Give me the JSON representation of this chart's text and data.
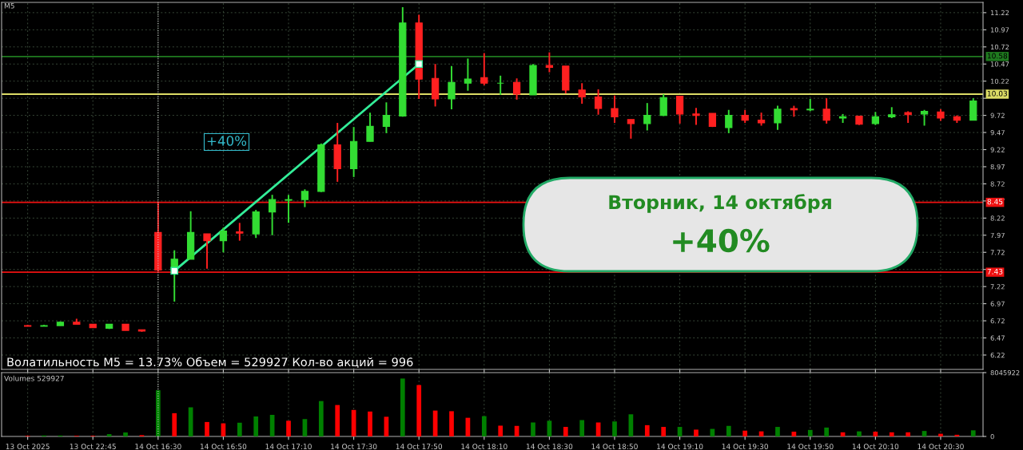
{
  "chart_data": [
    {
      "type": "candlestick",
      "title": "M5",
      "categories": [
        "13 Oct 2025",
        null,
        null,
        null,
        "13 Oct 22:45",
        null,
        null,
        null,
        "14 Oct 16:30",
        null,
        null,
        null,
        "14 Oct 16:50",
        null,
        null,
        null,
        "14 Oct 17:10",
        null,
        null,
        null,
        "14 Oct 17:30",
        null,
        null,
        null,
        "14 Oct 17:50",
        null,
        null,
        null,
        "14 Oct 18:10",
        null,
        null,
        null,
        "14 Oct 18:30",
        null,
        null,
        null,
        "14 Oct 18:50",
        null,
        null,
        null,
        "14 Oct 19:10",
        null,
        null,
        null,
        "14 Oct 19:30",
        null,
        null,
        null,
        "14 Oct 19:50",
        null,
        null,
        null,
        "14 Oct 20:10",
        null,
        null,
        null,
        "14 Oct 20:30",
        null,
        null
      ],
      "ohlc": [
        [
          6.65,
          6.66,
          6.64,
          6.64
        ],
        [
          6.64,
          6.66,
          6.64,
          6.65
        ],
        [
          6.65,
          6.71,
          6.65,
          6.7
        ],
        [
          6.7,
          6.75,
          6.67,
          6.67
        ],
        [
          6.67,
          6.67,
          6.62,
          6.62
        ],
        [
          6.61,
          6.67,
          6.6,
          6.67
        ],
        [
          6.67,
          6.67,
          6.58,
          6.58
        ],
        [
          6.59,
          6.59,
          6.56,
          6.57
        ],
        [
          8.01,
          8.45,
          7.44,
          7.46
        ],
        [
          7.46,
          7.75,
          7.0,
          7.62
        ],
        [
          7.62,
          8.32,
          7.62,
          8.01
        ],
        [
          7.99,
          7.99,
          7.48,
          7.89
        ],
        [
          7.89,
          8.08,
          7.72,
          8.03
        ],
        [
          8.02,
          8.15,
          7.89,
          8.0
        ],
        [
          7.99,
          8.34,
          7.93,
          8.31
        ],
        [
          8.31,
          8.56,
          7.97,
          8.49
        ],
        [
          8.48,
          8.56,
          8.15,
          8.49
        ],
        [
          8.49,
          8.64,
          8.38,
          8.61
        ],
        [
          8.61,
          9.31,
          8.6,
          9.29
        ],
        [
          9.29,
          9.61,
          8.75,
          8.94
        ],
        [
          8.94,
          9.55,
          8.82,
          9.34
        ],
        [
          9.34,
          9.76,
          9.34,
          9.56
        ],
        [
          9.56,
          9.91,
          9.46,
          9.72
        ],
        [
          9.71,
          11.3,
          9.7,
          11.07
        ],
        [
          11.07,
          11.19,
          9.96,
          10.25
        ],
        [
          10.26,
          10.47,
          9.85,
          9.96
        ],
        [
          9.96,
          10.44,
          9.81,
          10.2
        ],
        [
          10.19,
          10.55,
          10.08,
          10.25
        ],
        [
          10.27,
          10.63,
          10.16,
          10.19
        ],
        [
          10.19,
          10.3,
          10.02,
          10.19
        ],
        [
          10.2,
          10.26,
          9.95,
          10.03
        ],
        [
          10.02,
          10.47,
          10.02,
          10.45
        ],
        [
          10.45,
          10.64,
          10.35,
          10.42
        ],
        [
          10.44,
          10.44,
          10.04,
          10.09
        ],
        [
          10.09,
          10.19,
          9.89,
          9.99
        ],
        [
          9.99,
          10.1,
          9.73,
          9.82
        ],
        [
          9.82,
          10.01,
          9.61,
          9.7
        ],
        [
          9.66,
          9.66,
          9.38,
          9.6
        ],
        [
          9.6,
          9.9,
          9.5,
          9.72
        ],
        [
          9.72,
          10.03,
          9.71,
          9.98
        ],
        [
          10.0,
          10.0,
          9.6,
          9.74
        ],
        [
          9.74,
          9.83,
          9.58,
          9.72
        ],
        [
          9.75,
          9.75,
          9.55,
          9.56
        ],
        [
          9.54,
          9.8,
          9.46,
          9.72
        ],
        [
          9.72,
          9.8,
          9.61,
          9.65
        ],
        [
          9.65,
          9.76,
          9.57,
          9.61
        ],
        [
          9.61,
          9.86,
          9.51,
          9.81
        ],
        [
          9.82,
          9.86,
          9.7,
          9.8
        ],
        [
          9.8,
          9.96,
          9.78,
          9.81
        ],
        [
          9.81,
          9.97,
          9.6,
          9.65
        ],
        [
          9.68,
          9.74,
          9.61,
          9.7
        ],
        [
          9.71,
          9.71,
          9.58,
          9.59
        ],
        [
          9.6,
          9.77,
          9.58,
          9.7
        ],
        [
          9.7,
          9.84,
          9.68,
          9.73
        ],
        [
          9.76,
          9.78,
          9.61,
          9.73
        ],
        [
          9.74,
          9.8,
          9.57,
          9.78
        ],
        [
          9.77,
          9.81,
          9.64,
          9.68
        ],
        [
          9.7,
          9.72,
          9.61,
          9.65
        ],
        [
          9.65,
          9.97,
          9.65,
          9.93
        ]
      ],
      "colors": [
        "#ff2020",
        "#33dd33",
        "#33dd33",
        "#ff2020",
        "#ff2020",
        "#33dd33",
        "#ff2020",
        "#ff2020",
        "#ff2020",
        "#33dd33",
        "#33dd33",
        "#ff2020",
        "#33dd33",
        "#ff2020",
        "#33dd33",
        "#33dd33",
        "#33dd33",
        "#33dd33",
        "#33dd33",
        "#ff2020",
        "#33dd33",
        "#33dd33",
        "#33dd33",
        "#33dd33",
        "#ff2020",
        "#ff2020",
        "#33dd33",
        "#33dd33",
        "#ff2020",
        "#33dd33",
        "#ff2020",
        "#33dd33",
        "#ff2020",
        "#ff2020",
        "#ff2020",
        "#ff2020",
        "#ff2020",
        "#ff2020",
        "#33dd33",
        "#33dd33",
        "#ff2020",
        "#ff2020",
        "#ff2020",
        "#33dd33",
        "#ff2020",
        "#ff2020",
        "#33dd33",
        "#ff2020",
        "#33dd33",
        "#ff2020",
        "#33dd33",
        "#ff2020",
        "#33dd33",
        "#33dd33",
        "#ff2020",
        "#33dd33",
        "#ff2020",
        "#ff2020",
        "#33dd33"
      ],
      "series": [
        {
          "type": "line",
          "color": "#33ee99",
          "marker": "square",
          "values": [
            null,
            null,
            null,
            null,
            null,
            null,
            null,
            null,
            null,
            7.45,
            null,
            null,
            null,
            null,
            null,
            null,
            null,
            null,
            null,
            null,
            null,
            null,
            null,
            null,
            10.47,
            null,
            null,
            null,
            null,
            null,
            null,
            null,
            null,
            null,
            null,
            null,
            null,
            null,
            null,
            null,
            null,
            null,
            null,
            null,
            null,
            null,
            null,
            null,
            null,
            null,
            null,
            null,
            null,
            null,
            null,
            null,
            null,
            null,
            null
          ]
        }
      ],
      "ylim": [
        6.01,
        11.37
      ],
      "yticks": [
        6.22,
        6.47,
        6.72,
        6.97,
        7.22,
        {
          "value": 7.47,
          "label": null
        },
        7.72,
        7.97,
        8.22,
        8.47,
        8.72,
        8.97,
        9.22,
        9.47,
        9.72,
        {
          "value": 9.97,
          "label": null
        },
        10.22,
        10.47,
        10.72,
        10.97,
        11.22
      ],
      "grid": true,
      "tick_labels": "y",
      "ref_lines": [
        {
          "axis": "y",
          "value": 10.58,
          "label": "10.58",
          "color": "#1f7a1f"
        },
        {
          "axis": "y",
          "value": 10.03,
          "label": "10.03",
          "color": "#dddd66"
        },
        {
          "axis": "y",
          "value": 8.45,
          "label": "8.45",
          "color": "#ee1111"
        },
        {
          "axis": "y",
          "value": 7.43,
          "label": "7.43",
          "color": "#ee1111"
        },
        {
          "axis": "x",
          "value": "14 Oct 16:30",
          "color": "#cccccc",
          "line_style": "dotted"
        }
      ],
      "annotations": [
        "+40%",
        "Вторник, 14 октября",
        "+40%",
        "Волатильность M5 = 13.73% Объем = 529927 Кол-во акций = 996"
      ]
    },
    {
      "type": "bar",
      "categories": [
        "13 Oct 2025",
        null,
        null,
        null,
        "13 Oct 22:45",
        null,
        null,
        null,
        "14 Oct 16:30",
        null,
        null,
        null,
        "14 Oct 16:50",
        null,
        null,
        null,
        "14 Oct 17:10",
        null,
        null,
        null,
        "14 Oct 17:30",
        null,
        null,
        null,
        "14 Oct 17:50",
        null,
        null,
        null,
        "14 Oct 18:10",
        null,
        null,
        null,
        "14 Oct 18:30",
        null,
        null,
        null,
        "14 Oct 18:50",
        null,
        null,
        null,
        "14 Oct 19:10",
        null,
        null,
        null,
        "14 Oct 19:30",
        null,
        null,
        null,
        "14 Oct 19:50",
        null,
        null,
        null,
        "14 Oct 20:10",
        null,
        null,
        null,
        "14 Oct 20:30",
        null,
        null
      ],
      "values": [
        80000,
        120000,
        120000,
        80000,
        80000,
        290000,
        500000,
        165000,
        5820000,
        2930000,
        3670000,
        1820000,
        1650000,
        1730000,
        2520000,
        2720000,
        1980000,
        2190000,
        4460000,
        3960000,
        3340000,
        3140000,
        2480000,
        7300000,
        6480000,
        3260000,
        3180000,
        2350000,
        2560000,
        1360000,
        1330000,
        1760000,
        1980000,
        1200000,
        2060000,
        1760000,
        1890000,
        2790000,
        1420000,
        1200000,
        1200000,
        860000,
        950000,
        1330000,
        730000,
        640000,
        1200000,
        600000,
        820000,
        1120000,
        520000,
        640000,
        600000,
        520000,
        520000,
        690000,
        340000,
        210000,
        770000
      ],
      "colors": [
        "#ff0000",
        "#008000",
        "#008000",
        "#ff0000",
        "#ff0000",
        "#008000",
        "#008000",
        "#ff0000",
        "#008000",
        "#ff0000",
        "#008000",
        "#ff0000",
        "#ff0000",
        "#008000",
        "#008000",
        "#008000",
        "#ff0000",
        "#008000",
        "#008000",
        "#ff0000",
        "#ff0000",
        "#ff0000",
        "#ff0000",
        "#008000",
        "#ff0000",
        "#ff0000",
        "#ff0000",
        "#ff0000",
        "#008000",
        "#ff0000",
        "#ff0000",
        "#008000",
        "#008000",
        "#ff0000",
        "#008000",
        "#ff0000",
        "#008000",
        "#008000",
        "#ff0000",
        "#ff0000",
        "#008000",
        "#ff0000",
        "#008000",
        "#008000",
        "#ff0000",
        "#ff0000",
        "#008000",
        "#ff0000",
        "#008000",
        "#008000",
        "#ff0000",
        "#008000",
        "#ff0000",
        "#ff0000",
        "#ff0000",
        "#008000",
        "#ff0000",
        "#ff0000",
        "#008000"
      ],
      "ylim": [
        0,
        8045922
      ],
      "yticks": [
        0,
        8045922
      ],
      "grid": "x",
      "ref_lines": [
        {
          "axis": "x",
          "value": "14 Oct 16:30",
          "color": "#cccccc",
          "line_style": "dotted"
        }
      ],
      "annotations": [
        "Volumes 529927"
      ]
    }
  ]
}
